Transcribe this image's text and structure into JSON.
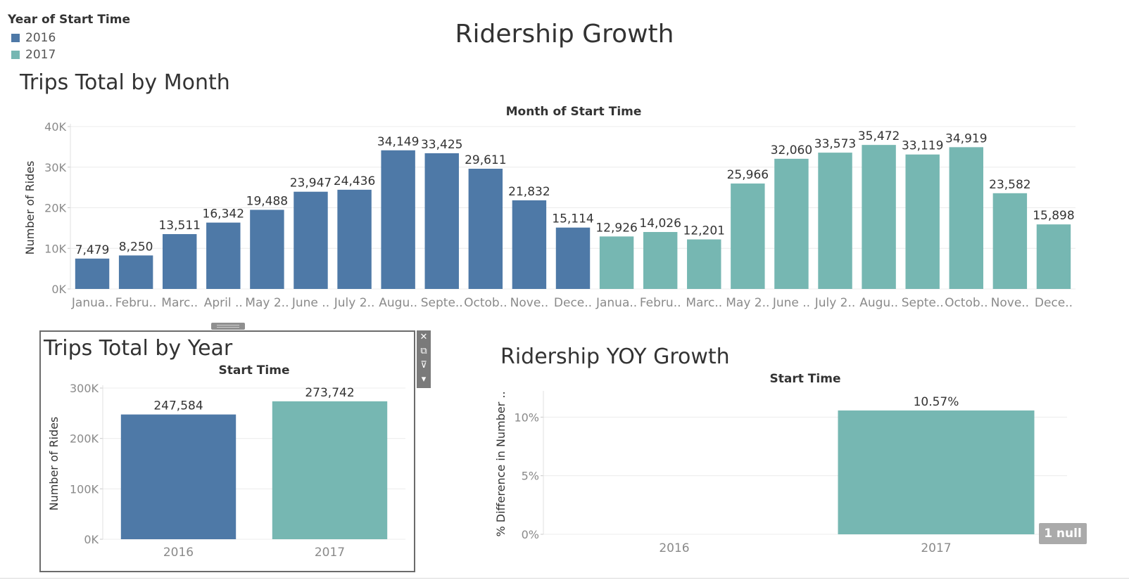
{
  "dashboard": {
    "title": "Ridership Growth"
  },
  "legend": {
    "title": "Year of Start Time",
    "items": [
      {
        "label": "2016",
        "color": "#4e79a7"
      },
      {
        "label": "2017",
        "color": "#76b7b2"
      }
    ]
  },
  "colors": {
    "y2016": "#4e79a7",
    "y2017": "#76b7b2"
  },
  "toolbar": {
    "icons": [
      "close-icon",
      "popout-icon",
      "filter-icon",
      "more-options-icon"
    ]
  },
  "null_badge": "1 null",
  "chart_data": [
    {
      "id": "month",
      "type": "bar",
      "sheet_title": "Trips Total by Month",
      "title": "Month of Start Time",
      "ylabel": "Number of Rides",
      "ylim": [
        0,
        40000
      ],
      "yticks": [
        0,
        10000,
        20000,
        30000,
        40000
      ],
      "ytick_labels": [
        "0K",
        "10K",
        "20K",
        "30K",
        "40K"
      ],
      "categories": [
        "Janua..",
        "Febru..",
        "Marc..",
        "April ..",
        "May 2..",
        "June ..",
        "July 2..",
        "Augu..",
        "Septe..",
        "Octob..",
        "Nove..",
        "Dece..",
        "Janua..",
        "Febru..",
        "Marc..",
        "May 2..",
        "June ..",
        "July 2..",
        "Augu..",
        "Septe..",
        "Octob..",
        "Nove..",
        "Dece.."
      ],
      "values": [
        7479,
        8250,
        13511,
        16342,
        19488,
        23947,
        24436,
        34149,
        33425,
        29611,
        21832,
        15114,
        12926,
        14026,
        12201,
        25966,
        32060,
        33573,
        35472,
        33119,
        34919,
        23582,
        15898
      ],
      "value_labels": [
        "7,479",
        "8,250",
        "13,511",
        "16,342",
        "19,488",
        "23,947",
        "24,436",
        "34,149",
        "33,425",
        "29,611",
        "21,832",
        "15,114",
        "12,926",
        "14,026",
        "12,201",
        "25,966",
        "32,060",
        "33,573",
        "35,472",
        "33,119",
        "34,919",
        "23,582",
        "15,898"
      ],
      "year": [
        "2016",
        "2016",
        "2016",
        "2016",
        "2016",
        "2016",
        "2016",
        "2016",
        "2016",
        "2016",
        "2016",
        "2016",
        "2017",
        "2017",
        "2017",
        "2017",
        "2017",
        "2017",
        "2017",
        "2017",
        "2017",
        "2017",
        "2017"
      ],
      "grid": true
    },
    {
      "id": "year",
      "type": "bar",
      "sheet_title": "Trips Total by Year",
      "title": "Start Time",
      "ylabel": "Number of Rides",
      "ylim": [
        0,
        300000
      ],
      "yticks": [
        0,
        100000,
        200000,
        300000
      ],
      "ytick_labels": [
        "0K",
        "100K",
        "200K",
        "300K"
      ],
      "categories": [
        "2016",
        "2017"
      ],
      "values": [
        247584,
        273742
      ],
      "value_labels": [
        "247,584",
        "273,742"
      ],
      "year": [
        "2016",
        "2017"
      ],
      "grid": true
    },
    {
      "id": "yoy",
      "type": "bar",
      "sheet_title": "Ridership YOY Growth",
      "title": "Start Time",
      "ylabel": "% Difference in Number ..",
      "ylim": [
        0,
        12
      ],
      "yticks": [
        0,
        5,
        10
      ],
      "ytick_labels": [
        "0%",
        "5%",
        "10%"
      ],
      "categories": [
        "2016",
        "2017"
      ],
      "values": [
        null,
        10.57
      ],
      "value_labels": [
        "",
        "10.57%"
      ],
      "year": [
        "2016",
        "2017"
      ],
      "grid": true
    }
  ]
}
